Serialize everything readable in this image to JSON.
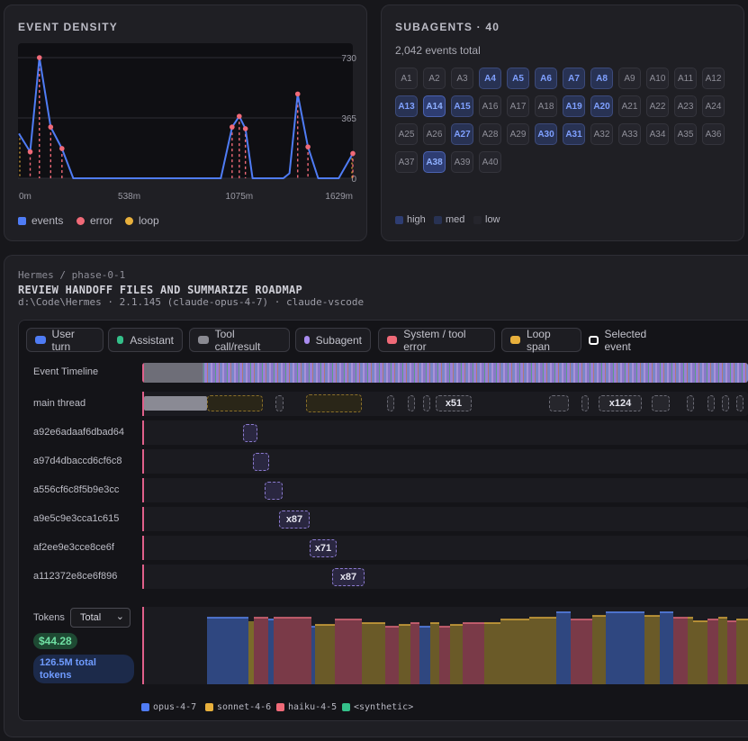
{
  "density": {
    "title": "EVENT DENSITY",
    "y_ticks": [
      "730",
      "365",
      "0"
    ],
    "x_ticks": [
      "0m",
      "538m",
      "1075m",
      "1629m"
    ],
    "legend": [
      {
        "label": "events",
        "color": "#4f7cf5"
      },
      {
        "label": "error",
        "color": "#f06a78"
      },
      {
        "label": "loop",
        "color": "#e8b03c"
      }
    ]
  },
  "chart_data": {
    "type": "line",
    "xlabel": "",
    "ylabel": "",
    "xlim": [
      0,
      1629
    ],
    "ylim": [
      0,
      730
    ],
    "x": [
      0,
      55,
      100,
      155,
      210,
      265,
      300,
      400,
      500,
      650,
      900,
      940,
      985,
      1040,
      1075,
      1105,
      1140,
      1200,
      1290,
      1320,
      1360,
      1410,
      1460,
      1500,
      1560,
      1629
    ],
    "series": [
      {
        "name": "events",
        "values": [
          270,
          160,
          730,
          310,
          180,
          0,
          0,
          0,
          0,
          0,
          0,
          0,
          0,
          310,
          375,
          300,
          0,
          0,
          0,
          30,
          510,
          190,
          0,
          0,
          0,
          150
        ]
      }
    ],
    "error_markers_x": [
      55,
      100,
      155,
      210,
      1040,
      1075,
      1105,
      1360,
      1410,
      1629
    ],
    "loop_markers_x": [
      0,
      1629
    ],
    "grid": true
  },
  "subagents": {
    "title": "SUBAGENTS · 40",
    "total": "2,042 events total",
    "agents": [
      {
        "id": "A1",
        "level": "low"
      },
      {
        "id": "A2",
        "level": "low"
      },
      {
        "id": "A3",
        "level": "low"
      },
      {
        "id": "A4",
        "level": "med"
      },
      {
        "id": "A5",
        "level": "med"
      },
      {
        "id": "A6",
        "level": "med"
      },
      {
        "id": "A7",
        "level": "med"
      },
      {
        "id": "A8",
        "level": "med"
      },
      {
        "id": "A9",
        "level": "low"
      },
      {
        "id": "A10",
        "level": "low"
      },
      {
        "id": "A11",
        "level": "low"
      },
      {
        "id": "A12",
        "level": "low"
      },
      {
        "id": "A13",
        "level": "med"
      },
      {
        "id": "A14",
        "level": "high"
      },
      {
        "id": "A15",
        "level": "med"
      },
      {
        "id": "A16",
        "level": "low"
      },
      {
        "id": "A17",
        "level": "low"
      },
      {
        "id": "A18",
        "level": "low"
      },
      {
        "id": "A19",
        "level": "med"
      },
      {
        "id": "A20",
        "level": "med"
      },
      {
        "id": "A21",
        "level": "low"
      },
      {
        "id": "A22",
        "level": "low"
      },
      {
        "id": "A23",
        "level": "low"
      },
      {
        "id": "A24",
        "level": "low"
      },
      {
        "id": "A25",
        "level": "low"
      },
      {
        "id": "A26",
        "level": "low"
      },
      {
        "id": "A27",
        "level": "med"
      },
      {
        "id": "A28",
        "level": "low"
      },
      {
        "id": "A29",
        "level": "low"
      },
      {
        "id": "A30",
        "level": "med"
      },
      {
        "id": "A31",
        "level": "med"
      },
      {
        "id": "A32",
        "level": "low"
      },
      {
        "id": "A33",
        "level": "low"
      },
      {
        "id": "A34",
        "level": "low"
      },
      {
        "id": "A35",
        "level": "low"
      },
      {
        "id": "A36",
        "level": "low"
      },
      {
        "id": "A37",
        "level": "low"
      },
      {
        "id": "A38",
        "level": "high"
      },
      {
        "id": "A39",
        "level": "low"
      },
      {
        "id": "A40",
        "level": "low"
      }
    ],
    "legend": [
      "high",
      "med",
      "low"
    ]
  },
  "session": {
    "breadcrumb": "Hermes / phase-0-1",
    "title": "REVIEW HANDOFF FILES AND SUMMARIZE ROADMAP",
    "meta": "d:\\Code\\Hermes · 2.1.145 (claude-opus-4-7) · claude-vscode"
  },
  "filters": [
    {
      "label": "User turn",
      "color": "#4f7cf5"
    },
    {
      "label": "Assistant",
      "color": "#34c08a"
    },
    {
      "label": "Tool call/result",
      "color": "#8a8a92"
    },
    {
      "label": "Subagent",
      "color": "#a98cf0"
    },
    {
      "label": "System / tool error",
      "color": "#f06a78"
    },
    {
      "label": "Loop span",
      "color": "#e8b03c"
    },
    {
      "label": "Selected event",
      "color": "#ffffff"
    }
  ],
  "rows": {
    "timeline": "Event Timeline",
    "main": "main thread",
    "main_counts": [
      "x51",
      "x124"
    ],
    "subagents": [
      {
        "name": "a92e6adaaf6dbad64",
        "count": ""
      },
      {
        "name": "a97d4dbaccd6cf6c8",
        "count": ""
      },
      {
        "name": "a556cf6c8f5b9e3cc",
        "count": ""
      },
      {
        "name": "a9e5c9e3cca1c615",
        "count": "x87"
      },
      {
        "name": "af2ee9e3cce8ce6f",
        "count": "x71"
      },
      {
        "name": "a112372e8ce6f896",
        "count": "x87"
      }
    ]
  },
  "tokens": {
    "label": "Tokens",
    "select_value": "Total",
    "cost": "$44.28",
    "total": "126.5M total tokens",
    "legend": [
      {
        "label": "opus-4-7",
        "color": "#4f7cf5"
      },
      {
        "label": "sonnet-4-6",
        "color": "#e8b03c"
      },
      {
        "label": "haiku-4-5",
        "color": "#f06a78"
      },
      {
        "label": "<synthetic>",
        "color": "#34c08a"
      }
    ]
  }
}
